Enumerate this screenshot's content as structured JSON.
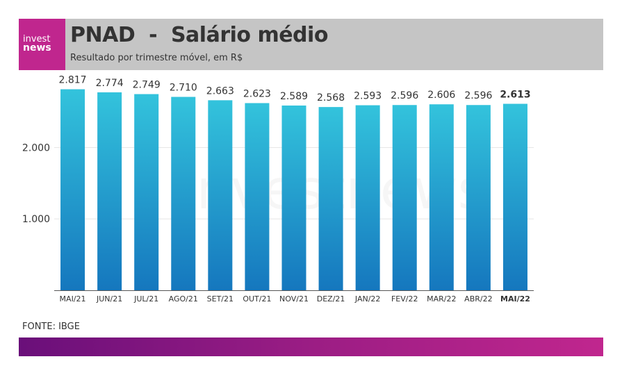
{
  "header": {
    "logo_line1": "invest",
    "logo_line2": "news",
    "title": "PNAD  -  Salário médio",
    "subtitle": "Resultado por trimestre móvel, em R$"
  },
  "chart_data": {
    "type": "bar",
    "title": "PNAD  -  Salário médio",
    "subtitle": "Resultado por trimestre móvel, em R$",
    "categories": [
      "MAI/21",
      "JUN/21",
      "JUL/21",
      "AGO/21",
      "SET/21",
      "OUT/21",
      "NOV/21",
      "DEZ/21",
      "JAN/22",
      "FEV/22",
      "MAR/22",
      "ABR/22",
      "MAI/22"
    ],
    "values": [
      2817,
      2774,
      2749,
      2710,
      2663,
      2623,
      2589,
      2568,
      2593,
      2596,
      2606,
      2596,
      2613
    ],
    "value_labels": [
      "2.817",
      "2.774",
      "2.749",
      "2.710",
      "2.663",
      "2.623",
      "2.589",
      "2.568",
      "2.593",
      "2.596",
      "2.606",
      "2.596",
      "2.613"
    ],
    "y_ticks": [
      1000,
      2000
    ],
    "y_tick_labels": [
      "1.000",
      "2.000"
    ],
    "ylim": [
      0,
      2900
    ],
    "grid": true,
    "highlight_index": 12,
    "bar_color_top": "#33c3dc",
    "bar_color_bottom": "#1577be",
    "watermark": "investnews"
  },
  "source": "FONTE: IBGE",
  "colors": {
    "brand": "#c0268e",
    "header_bg": "#c5c5c5",
    "footer_start": "#6a0f7a",
    "footer_end": "#c0268e"
  }
}
